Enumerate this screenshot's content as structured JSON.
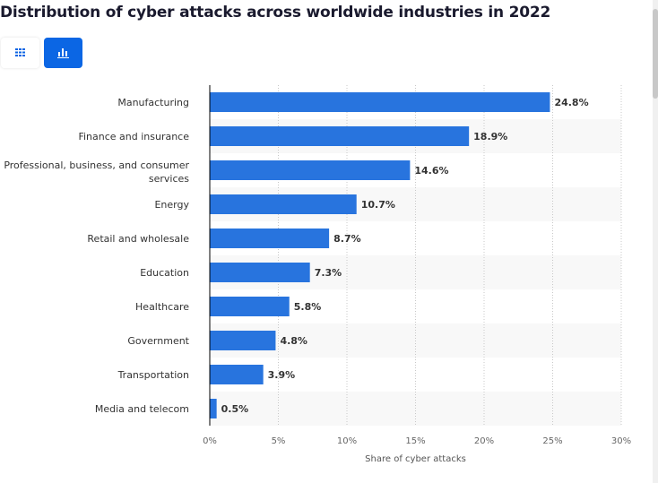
{
  "title": "Distribution of cyber attacks across worldwide industries in 2022",
  "view_toggle": {
    "table_icon": "grid-icon",
    "chart_icon": "bar-chart-icon",
    "active": "chart"
  },
  "colors": {
    "bar": "#2874de",
    "accent": "#0b66e4",
    "stripe": "#f8f8f8"
  },
  "chart_data": {
    "type": "bar",
    "orientation": "horizontal",
    "title": "Distribution of cyber attacks across worldwide industries in 2022",
    "xlabel": "Share of cyber attacks",
    "ylabel": "",
    "xlim": [
      0,
      30
    ],
    "ticks": [
      "0%",
      "5%",
      "10%",
      "15%",
      "20%",
      "25%",
      "30%"
    ],
    "grid": true,
    "categories": [
      [
        "Manufacturing"
      ],
      [
        "Finance and insurance"
      ],
      [
        "Professional, business, and consumer",
        "services"
      ],
      [
        "Energy"
      ],
      [
        "Retail and wholesale"
      ],
      [
        "Education"
      ],
      [
        "Healthcare"
      ],
      [
        "Government"
      ],
      [
        "Transportation"
      ],
      [
        "Media and telecom"
      ]
    ],
    "values": [
      24.8,
      18.9,
      14.6,
      10.7,
      8.7,
      7.3,
      5.8,
      4.8,
      3.9,
      0.5
    ],
    "value_labels": [
      "24.8%",
      "18.9%",
      "14.6%",
      "10.7%",
      "8.7%",
      "7.3%",
      "5.8%",
      "4.8%",
      "3.9%",
      "0.5%"
    ]
  }
}
